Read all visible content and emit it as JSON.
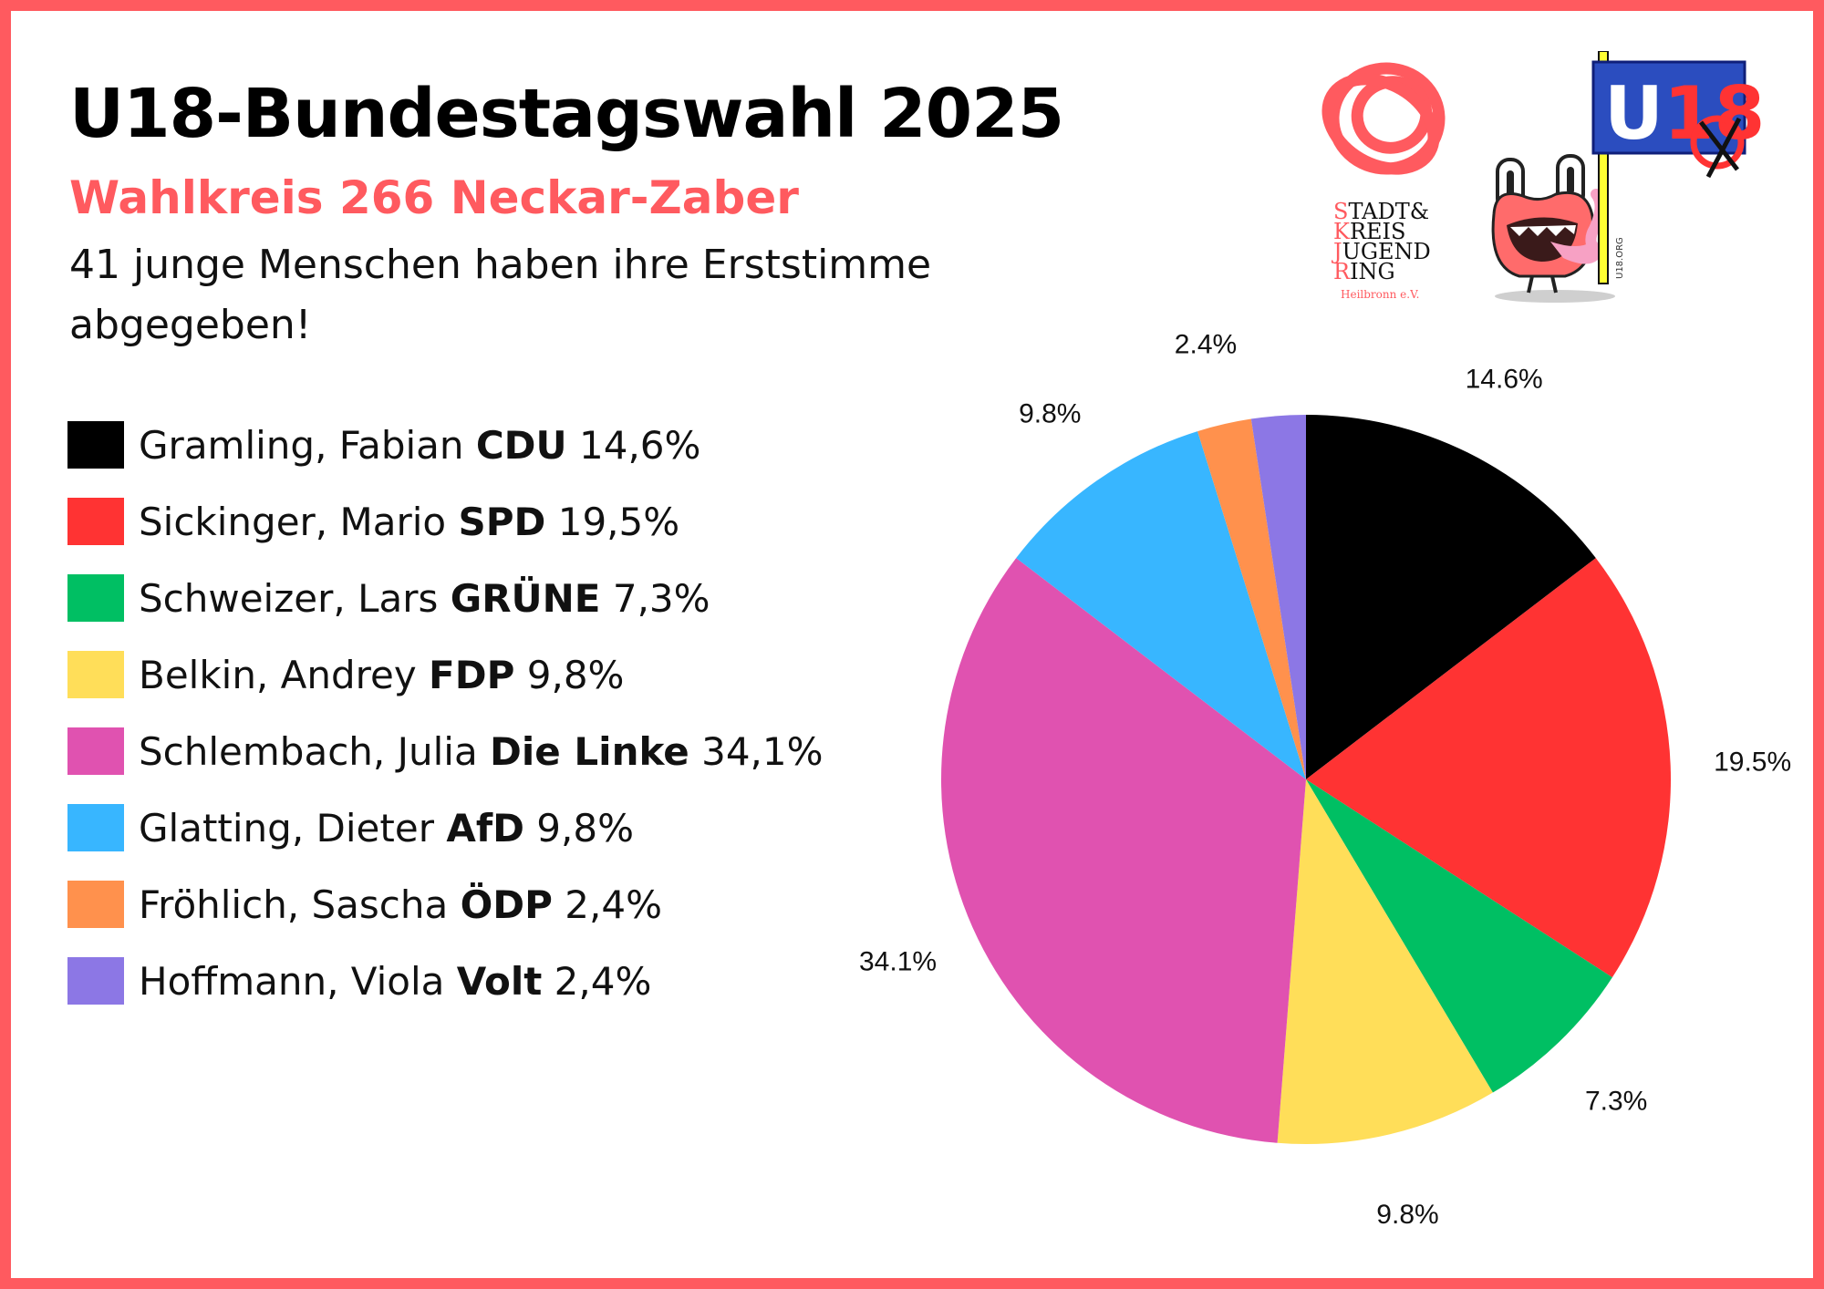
{
  "title": "U18-Bundestagswahl 2025",
  "subtitle": "Wahlkreis 266 Neckar-Zaber",
  "description": "41 junge Menschen haben ihre Erststimme abgegeben!",
  "colors": {
    "frame": "#ff5a5f",
    "accent": "#ff5a5f"
  },
  "legend": [
    {
      "name": "Gramling, Fabian",
      "party": "CDU",
      "value": "14,6%",
      "color": "#000000"
    },
    {
      "name": "Sickinger, Mario",
      "party": "SPD",
      "value": "19,5%",
      "color": "#ff3333"
    },
    {
      "name": "Schweizer, Lars",
      "party": "GRÜNE",
      "value": "7,3%",
      "color": "#00bf63"
    },
    {
      "name": "Belkin, Andrey",
      "party": "FDP",
      "value": "9,8%",
      "color": "#ffde59"
    },
    {
      "name": "Schlembach, Julia",
      "party": "Die Linke",
      "value": "34,1%",
      "color": "#e052b0"
    },
    {
      "name": "Glatting, Dieter",
      "party": "AfD",
      "value": "9,8%",
      "color": "#38b6ff"
    },
    {
      "name": "Fröhlich, Sascha",
      "party": "ÖDP",
      "value": "2,4%",
      "color": "#ff914d"
    },
    {
      "name": "Hoffmann, Viola",
      "party": "Volt",
      "value": "2,4%",
      "color": "#8c77e5"
    }
  ],
  "chart_data": {
    "type": "pie",
    "title": "",
    "categories": [
      "CDU",
      "SPD",
      "GRÜNE",
      "FDP",
      "Die Linke",
      "AfD",
      "ÖDP",
      "Volt"
    ],
    "values": [
      14.6,
      19.5,
      7.3,
      9.8,
      34.1,
      9.8,
      2.4,
      2.4
    ],
    "labels": [
      "14.6%",
      "19.5%",
      "7.3%",
      "9.8%",
      "34.1%",
      "9.8%",
      "2.4%",
      ""
    ],
    "colors": [
      "#000000",
      "#ff3333",
      "#00bf63",
      "#ffde59",
      "#e052b0",
      "#38b6ff",
      "#ff914d",
      "#8c77e5"
    ],
    "start_angle": "12 o'clock",
    "direction": "clockwise",
    "legend_position": "left"
  },
  "logos": {
    "jugendring": {
      "lines": [
        "STADT&",
        "KREIS",
        "JUGEND",
        "RING"
      ],
      "place": "Heilbronn e.V."
    },
    "u18": {
      "text": "U18",
      "url_text": "U18.ORG"
    }
  }
}
